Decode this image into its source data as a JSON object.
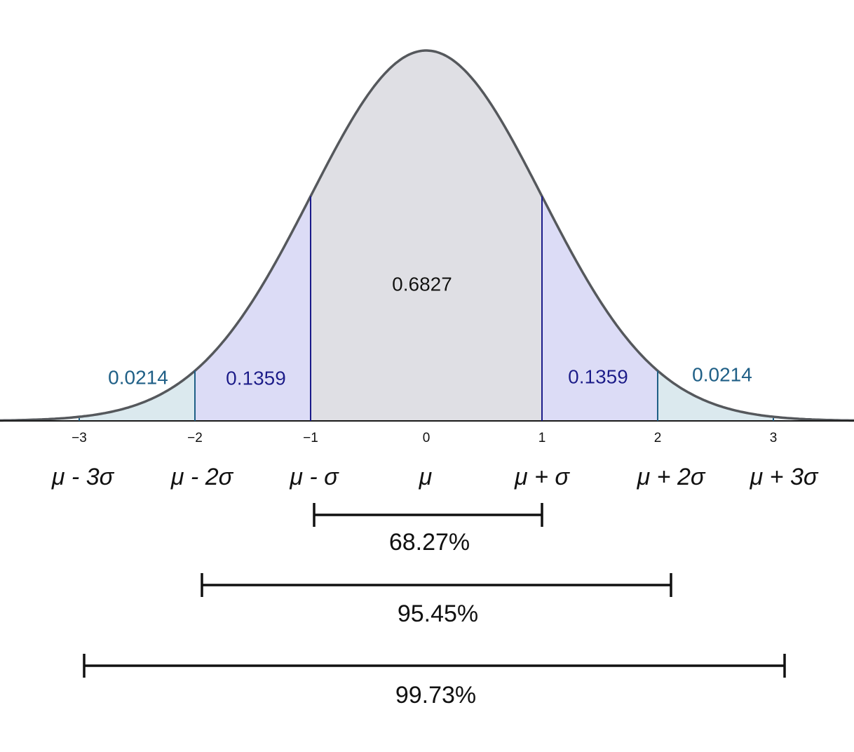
{
  "axis": {
    "ticks": [
      {
        "value": -3,
        "label": "−3"
      },
      {
        "value": -2,
        "label": "−2"
      },
      {
        "value": -1,
        "label": "−1"
      },
      0,
      1,
      2,
      3
    ]
  },
  "areas": [
    0.0214,
    0.1359,
    0.6827,
    0.1359,
    0.0214
  ],
  "sigma_labels": [
    "μ - 3σ",
    "μ - 2σ",
    "μ - σ",
    "μ",
    "μ + σ",
    "μ + 2σ",
    "μ + 3σ"
  ],
  "ranges": [
    "68.27%",
    "95.45%",
    "99.73%"
  ]
}
